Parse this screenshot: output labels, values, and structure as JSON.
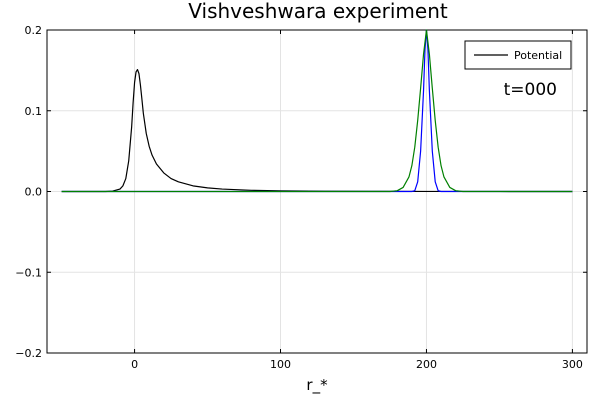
{
  "chart_data": {
    "type": "line",
    "title": "Vishveshwara experiment",
    "xlabel": "r_*",
    "ylabel": "",
    "xlim": [
      -60,
      310
    ],
    "ylim": [
      -0.2,
      0.2
    ],
    "xticks": [
      0,
      100,
      200,
      300
    ],
    "xtick_labels": [
      "0",
      "100",
      "200",
      "300"
    ],
    "yticks": [
      -0.2,
      -0.1,
      0.0,
      0.1,
      0.2
    ],
    "ytick_labels": [
      "−0.2",
      "−0.1",
      "0.0",
      "0.1",
      "0.2"
    ],
    "grid": true,
    "legend_position": "top-right",
    "annotation": "t=000",
    "series": [
      {
        "name": "Potential",
        "color": "#000000",
        "legend": true,
        "x": [
          -50,
          -20,
          -15,
          -10,
          -8,
          -6,
          -4,
          -2,
          -1,
          0,
          1,
          2,
          3,
          4,
          5,
          6,
          8,
          10,
          12,
          15,
          20,
          25,
          30,
          40,
          50,
          60,
          80,
          100,
          130,
          160,
          200,
          250,
          300
        ],
        "y": [
          0,
          0,
          0.0005,
          0.003,
          0.007,
          0.016,
          0.038,
          0.08,
          0.11,
          0.135,
          0.148,
          0.151,
          0.146,
          0.132,
          0.115,
          0.097,
          0.072,
          0.056,
          0.045,
          0.034,
          0.023,
          0.016,
          0.012,
          0.007,
          0.0045,
          0.003,
          0.0015,
          0.0008,
          0.0004,
          0.0002,
          0.0001,
          5e-05,
          0.0
        ]
      },
      {
        "name": "",
        "color": "#0000ff",
        "legend": false,
        "x": [
          -50,
          185,
          190,
          192,
          194,
          196,
          198,
          199,
          200,
          201,
          202,
          204,
          206,
          208,
          210,
          215,
          300
        ],
        "y": [
          0,
          0,
          0.0,
          0.001,
          0.012,
          0.05,
          0.125,
          0.176,
          0.2,
          0.176,
          0.125,
          0.05,
          0.012,
          0.001,
          0.0,
          0,
          0
        ]
      },
      {
        "name": "",
        "color": "#008000",
        "legend": false,
        "x": [
          -50,
          175,
          180,
          184,
          188,
          190,
          192,
          194,
          196,
          198,
          200,
          202,
          204,
          206,
          208,
          210,
          212,
          216,
          220,
          225,
          300
        ],
        "y": [
          0,
          0,
          0.001,
          0.005,
          0.018,
          0.032,
          0.055,
          0.088,
          0.128,
          0.17,
          0.2,
          0.17,
          0.128,
          0.088,
          0.055,
          0.032,
          0.018,
          0.005,
          0.001,
          0,
          0
        ]
      }
    ]
  }
}
